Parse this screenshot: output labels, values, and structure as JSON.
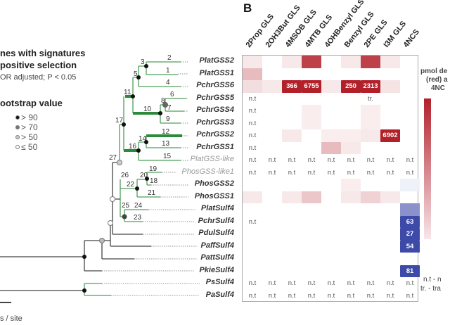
{
  "legend": {
    "selection_title_1": "nes with signatures",
    "selection_title_2": "positive selection",
    "selection_sub": "OR adjusted; P < 0.05",
    "bootstrap_title": "ootstrap value",
    "bootstrap_items": [
      {
        "label": "> 90",
        "color": "#111111"
      },
      {
        "label": "> 70",
        "color": "#777777"
      },
      {
        "label": "> 50",
        "color": "#cccccc"
      },
      {
        "label": "≤ 50",
        "color": "#ffffff"
      }
    ],
    "scale_label": "s / site"
  },
  "panel_label": "B",
  "columns": [
    "2Prop GLS",
    "2OH3But GLS",
    "4MSOB GLS",
    "4MTB GLS",
    "4OHBenzyl GLS",
    "Benzyl GLS",
    "2PE GLS",
    "I3M GLS",
    "4NCS"
  ],
  "rows": [
    {
      "label": "PlatGSS2",
      "grey": false,
      "cells": [
        {
          "v": 0.1
        },
        {},
        {
          "v": 0.1
        },
        {
          "v": 0.85
        },
        {},
        {
          "v": 0.1
        },
        {
          "v": 0.85
        },
        {
          "v": 0.1
        },
        {}
      ]
    },
    {
      "label": "PlatGSS1",
      "grey": false,
      "cells": [
        {
          "v": 0.3
        },
        {},
        {},
        {},
        {},
        {},
        {},
        {},
        {}
      ]
    },
    {
      "label": "PchrGSS6",
      "grey": false,
      "cells": [
        {
          "v": 0.15
        },
        {
          "v": 0.1
        },
        {
          "v": 1,
          "t": "366"
        },
        {
          "v": 1,
          "t": "6755"
        },
        {
          "v": 0.1
        },
        {
          "v": 1,
          "t": "250"
        },
        {
          "v": 1,
          "t": "2313"
        },
        {
          "v": 0.12
        },
        {}
      ]
    },
    {
      "label": "PchrGSS5",
      "grey": false,
      "cells": [
        {
          "t": "n.t"
        },
        {},
        {},
        {},
        {},
        {},
        {
          "t": "tr."
        },
        {},
        {}
      ]
    },
    {
      "label": "PchrGSS4",
      "grey": false,
      "cells": [
        {
          "t": "n.t"
        },
        {},
        {},
        {
          "v": 0.08
        },
        {},
        {},
        {
          "v": 0.08
        },
        {},
        {}
      ]
    },
    {
      "label": "PchrGSS3",
      "grey": false,
      "cells": [
        {
          "t": "n.t"
        },
        {},
        {},
        {
          "v": 0.08
        },
        {},
        {},
        {
          "v": 0.08
        },
        {},
        {}
      ]
    },
    {
      "label": "PchrGSS2",
      "grey": false,
      "cells": [
        {
          "t": "n.t"
        },
        {},
        {
          "v": 0.1
        },
        {},
        {
          "v": 0.08
        },
        {
          "v": 0.08
        },
        {
          "v": 0.1
        },
        {
          "v": 1,
          "t": "6902"
        },
        {}
      ]
    },
    {
      "label": "PchrGSS1",
      "grey": false,
      "cells": [
        {
          "t": "n.t"
        },
        {},
        {},
        {},
        {
          "v": 0.3
        },
        {
          "v": 0.1
        },
        {},
        {},
        {}
      ]
    },
    {
      "label": "PlatGSS-like",
      "grey": true,
      "cells": [
        {
          "t": "n.t"
        },
        {
          "t": "n.t"
        },
        {
          "t": "n.t"
        },
        {
          "t": "n.t"
        },
        {
          "t": "n.t"
        },
        {
          "t": "n.t"
        },
        {
          "t": "n.t"
        },
        {
          "t": "n.t"
        },
        {
          "t": "n.t"
        }
      ]
    },
    {
      "label": "PhosGSS-like1",
      "grey": true,
      "cells": [
        {
          "t": "n.t"
        },
        {
          "t": "n.t"
        },
        {
          "t": "n.t"
        },
        {
          "t": "n.t"
        },
        {
          "t": "n.t"
        },
        {
          "t": "n.t"
        },
        {
          "t": "n.t"
        },
        {
          "t": "n.t"
        },
        {
          "t": "n.t"
        }
      ]
    },
    {
      "label": "PhosGSS2",
      "grey": false,
      "cells": [
        {},
        {},
        {},
        {},
        {},
        {
          "v": 0.08
        },
        {},
        {},
        {
          "b": 0.08
        }
      ]
    },
    {
      "label": "PhosGSS1",
      "grey": false,
      "cells": [
        {
          "v": 0.1
        },
        {},
        {
          "v": 0.1
        },
        {
          "v": 0.25
        },
        {},
        {
          "v": 0.1
        },
        {
          "v": 0.2
        },
        {
          "v": 0.1
        },
        {}
      ]
    },
    {
      "label": "PlatSulf4",
      "grey": false,
      "cells": [
        {},
        {},
        {},
        {},
        {},
        {},
        {},
        {},
        {
          "b": 0.6
        }
      ]
    },
    {
      "label": "PchrSulf4",
      "grey": false,
      "cells": [
        {
          "t": "n.t"
        },
        {},
        {},
        {},
        {},
        {},
        {},
        {},
        {
          "b": 1,
          "t": "63"
        }
      ]
    },
    {
      "label": "PdulSulf4",
      "grey": false,
      "cells": [
        {},
        {},
        {},
        {},
        {},
        {},
        {},
        {},
        {
          "b": 1,
          "t": "27"
        }
      ]
    },
    {
      "label": "PaffSulf4",
      "grey": false,
      "cells": [
        {},
        {},
        {},
        {},
        {},
        {},
        {},
        {},
        {
          "b": 1,
          "t": "54"
        }
      ]
    },
    {
      "label": "PattSulf4",
      "grey": false,
      "cells": [
        {},
        {},
        {},
        {},
        {},
        {},
        {},
        {},
        {}
      ]
    },
    {
      "label": "PkieSulf4",
      "grey": false,
      "cells": [
        {},
        {},
        {},
        {},
        {},
        {},
        {},
        {},
        {
          "b": 1,
          "t": "81"
        }
      ]
    },
    {
      "label": "PsSulf4",
      "grey": false,
      "cells": [
        {
          "t": "n.t"
        },
        {
          "t": "n.t"
        },
        {
          "t": "n.t"
        },
        {
          "t": "n.t"
        },
        {
          "t": "n.t"
        },
        {
          "t": "n.t"
        },
        {
          "t": "n.t"
        },
        {
          "t": "n.t"
        },
        {
          "t": "n.t"
        }
      ]
    },
    {
      "label": "PaSulf4",
      "grey": false,
      "cells": [
        {
          "t": "n.t"
        },
        {
          "t": "n.t"
        },
        {
          "t": "n.t"
        },
        {
          "t": "n.t"
        },
        {
          "t": "n.t"
        },
        {
          "t": "n.t"
        },
        {
          "t": "n.t"
        },
        {
          "t": "n.t"
        },
        {
          "t": "n.t"
        }
      ]
    }
  ],
  "branch_numbers": [
    "1",
    "2",
    "3",
    "4",
    "5",
    "6",
    "7",
    "8",
    "9",
    "10",
    "11",
    "12",
    "13",
    "14",
    "15",
    "16",
    "17",
    "18",
    "19",
    "20",
    "21",
    "22",
    "23",
    "24",
    "25",
    "26",
    "27"
  ],
  "color_legend": {
    "line1": "pmol de",
    "line2": "(red) a",
    "line3": "4NC",
    "nt_note": "n.t - n",
    "tr_note": "tr. - tra"
  },
  "colors": {
    "red": "#b2202a",
    "blue": "#3d4aa8",
    "green": "#3a9a4a"
  }
}
